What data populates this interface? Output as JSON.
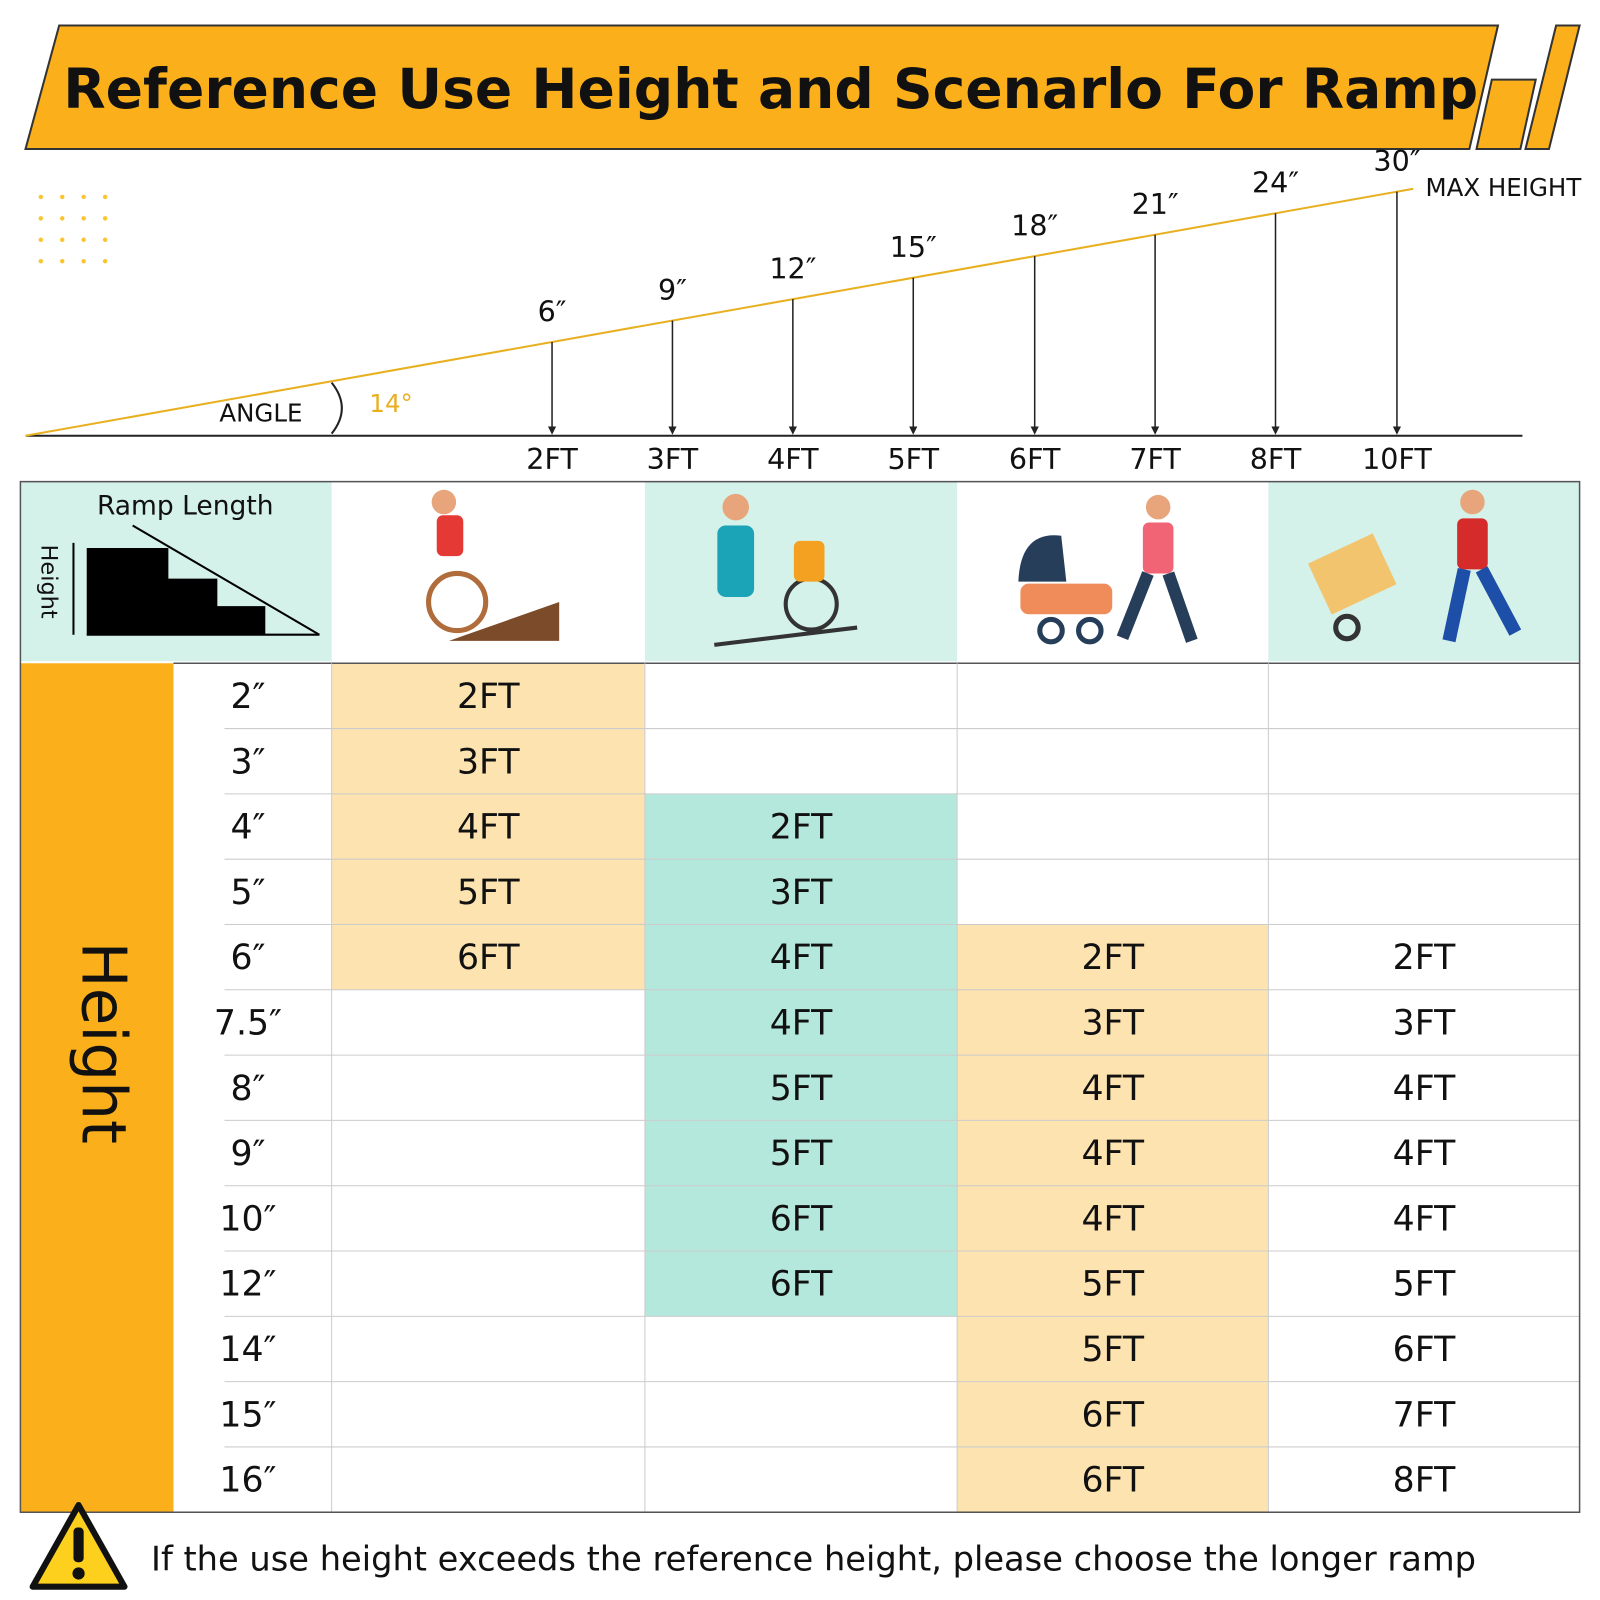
{
  "title": "Reference Use Height and Scenarlo For Ramp",
  "ramp": {
    "angle_label": "ANGLE",
    "angle_value": "14°",
    "max_label": "MAX HEIGHT",
    "heights": [
      "6″",
      "9″",
      "12″",
      "15″",
      "18″",
      "21″",
      "24″",
      "30″"
    ],
    "lengths": [
      "2FT",
      "3FT",
      "4FT",
      "5FT",
      "6FT",
      "7FT",
      "8FT",
      "10FT"
    ]
  },
  "table": {
    "corner_length": "Ramp Length",
    "corner_height": "Height",
    "row_header": "Height",
    "column_colors": [
      "#fde3b0",
      "#b5e8dc",
      "#fde3b0",
      "#ffffff"
    ],
    "rows": [
      {
        "height": "2″",
        "cells": [
          "2FT",
          null,
          null,
          null
        ]
      },
      {
        "height": "3″",
        "cells": [
          "3FT",
          null,
          null,
          null
        ]
      },
      {
        "height": "4″",
        "cells": [
          "4FT",
          "2FT",
          null,
          null
        ]
      },
      {
        "height": "5″",
        "cells": [
          "5FT",
          "3FT",
          null,
          null
        ]
      },
      {
        "height": "6″",
        "cells": [
          "6FT",
          "4FT",
          "2FT",
          "2FT"
        ]
      },
      {
        "height": "7.5″",
        "cells": [
          null,
          "4FT",
          "3FT",
          "3FT"
        ]
      },
      {
        "height": "8″",
        "cells": [
          null,
          "5FT",
          "4FT",
          "4FT"
        ]
      },
      {
        "height": "9″",
        "cells": [
          null,
          "5FT",
          "4FT",
          "4FT"
        ]
      },
      {
        "height": "10″",
        "cells": [
          null,
          "6FT",
          "4FT",
          "4FT"
        ]
      },
      {
        "height": "12″",
        "cells": [
          null,
          "6FT",
          "5FT",
          "5FT"
        ]
      },
      {
        "height": "14″",
        "cells": [
          null,
          null,
          "5FT",
          "6FT"
        ]
      },
      {
        "height": "15″",
        "cells": [
          null,
          null,
          "6FT",
          "7FT"
        ]
      },
      {
        "height": "16″",
        "cells": [
          null,
          null,
          "6FT",
          "8FT"
        ]
      }
    ]
  },
  "note": "If the use height exceeds the reference height, please choose the longer ramp"
}
